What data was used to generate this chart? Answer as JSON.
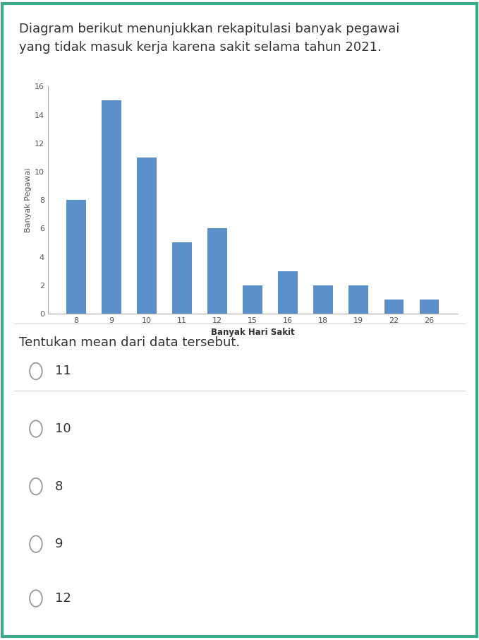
{
  "title_text": "Diagram berikut menunjukkan rekapitulasi banyak pegawai\nyang tidak masuk kerja karena sakit selama tahun 2021.",
  "question_text": "Tentukan mean dari data tersebut.",
  "options": [
    "11",
    "10",
    "8",
    "9",
    "12"
  ],
  "categories": [
    8,
    9,
    10,
    11,
    12,
    15,
    16,
    18,
    19,
    22,
    26
  ],
  "values": [
    8,
    15,
    11,
    5,
    6,
    2,
    3,
    2,
    2,
    1,
    1
  ],
  "bar_color": "#5b8fc9",
  "xlabel": "Banyak Hari Sakit",
  "ylabel": "Banyak Pegawai",
  "ylim": [
    0,
    16
  ],
  "yticks": [
    0,
    2,
    4,
    6,
    8,
    10,
    12,
    14,
    16
  ],
  "background_color": "#ffffff",
  "border_color": "#3aaa8a",
  "title_fontsize": 13,
  "axis_label_fontsize": 8.5,
  "tick_fontsize": 8,
  "ylabel_fontsize": 8,
  "question_fontsize": 13,
  "option_fontsize": 13,
  "separator_color": "#cccccc",
  "text_color": "#333333",
  "option_circle_color": "#999999"
}
